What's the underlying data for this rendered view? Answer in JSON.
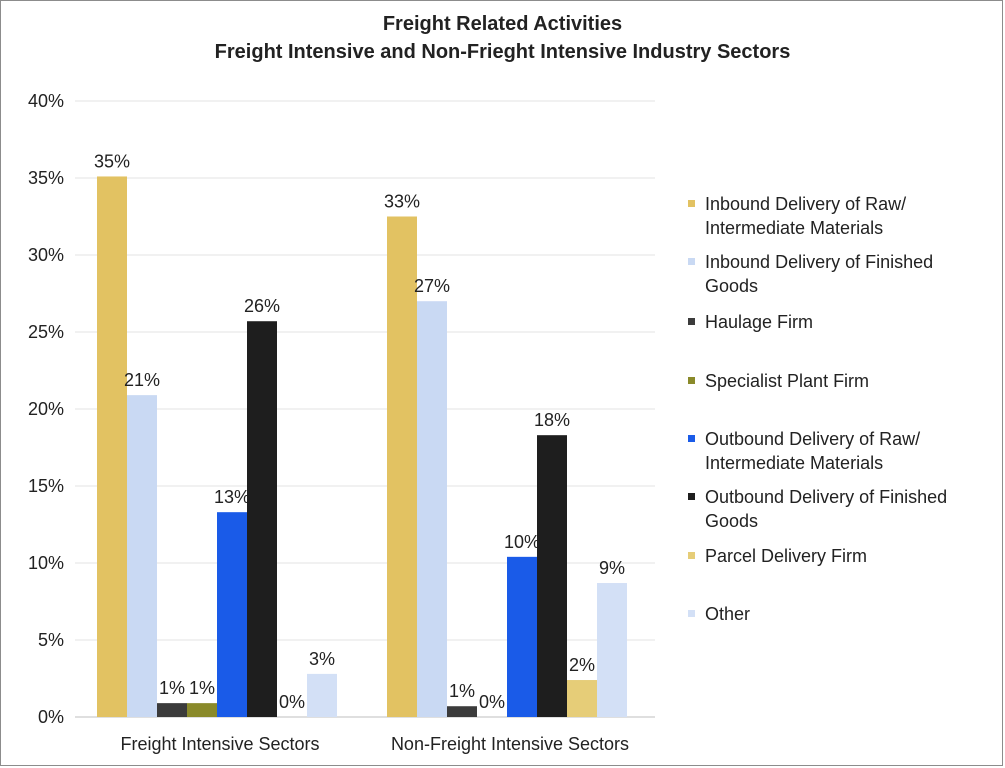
{
  "chart_data": {
    "type": "bar",
    "title": [
      "Freight Related Activities",
      "Freight Intensive and Non-Frieght Intensive Industry Sectors"
    ],
    "categories": [
      "Freight Intensive Sectors",
      "Non-Freight Intensive Sectors"
    ],
    "yticks": [
      "0%",
      "5%",
      "10%",
      "15%",
      "20%",
      "25%",
      "30%",
      "35%",
      "40%"
    ],
    "ylim": [
      0,
      40
    ],
    "unit": "%",
    "grid": true,
    "legend_position": "right",
    "series": [
      {
        "name": [
          "Inbound Delivery of Raw/",
          "Intermediate Materials"
        ],
        "color": "#e2c262",
        "values": [
          35.1,
          32.5
        ],
        "labels": [
          "35%",
          "33%"
        ]
      },
      {
        "name": [
          "Inbound Delivery of Finished",
          "Goods"
        ],
        "color": "#c9d9f3",
        "values": [
          20.9,
          27.0
        ],
        "labels": [
          "21%",
          "27%"
        ]
      },
      {
        "name": [
          "Haulage Firm"
        ],
        "color": "#3b3b3b",
        "values": [
          0.9,
          0.7
        ],
        "labels": [
          "1%",
          "1%"
        ]
      },
      {
        "name": [
          "Specialist Plant Firm"
        ],
        "color": "#8a8a2a",
        "values": [
          0.9,
          0.0
        ],
        "labels": [
          "1%",
          "0%"
        ]
      },
      {
        "name": [
          "Outbound Delivery of Raw/",
          "Intermediate Materials"
        ],
        "color": "#1a5be8",
        "values": [
          13.3,
          10.4
        ],
        "labels": [
          "13%",
          "10%"
        ]
      },
      {
        "name": [
          "Outbound Delivery of Finished",
          "Goods"
        ],
        "color": "#1e1e1e",
        "values": [
          25.7,
          18.3
        ],
        "labels": [
          "26%",
          "18%"
        ]
      },
      {
        "name": [
          "Parcel Delivery Firm"
        ],
        "color": "#e6cd78",
        "values": [
          0.0,
          2.4
        ],
        "labels": [
          "0%",
          "2%"
        ]
      },
      {
        "name": [
          "Other"
        ],
        "color": "#d3e0f6",
        "values": [
          2.8,
          8.7
        ],
        "labels": [
          "3%",
          "9%"
        ]
      }
    ]
  }
}
